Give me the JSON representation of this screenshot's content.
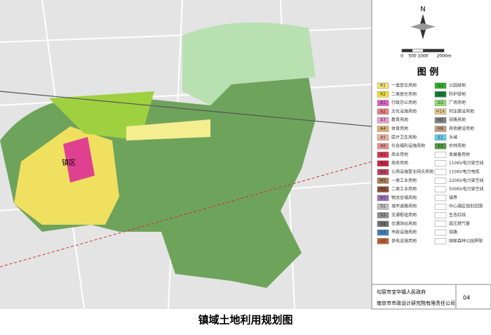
{
  "map": {
    "title": "镇域土地利用规划图",
    "north": "N",
    "scale_labels": [
      "0",
      "500",
      "1000",
      "2000m"
    ],
    "place_label": "镇区",
    "legend_title": "图  例",
    "legend_left": [
      {
        "code": "R1",
        "name": "一类居住用地",
        "color": "#f5e87a"
      },
      {
        "code": "R2",
        "name": "二类居住用地",
        "color": "#f3e03a"
      },
      {
        "code": "A1",
        "name": "行政办公用地",
        "color": "#e060c0"
      },
      {
        "code": "A2",
        "name": "文化设施用地",
        "color": "#f08080"
      },
      {
        "code": "A3",
        "name": "教育用地",
        "color": "#f0a0d0"
      },
      {
        "code": "A4",
        "name": "体育用地",
        "color": "#e0b070"
      },
      {
        "code": "A5",
        "name": "医疗卫生用地",
        "color": "#f0b0a0"
      },
      {
        "code": "A6",
        "name": "社会福利设施用地",
        "color": "#e89090"
      },
      {
        "code": "B1",
        "name": "商业用地",
        "color": "#e03050"
      },
      {
        "code": "B2",
        "name": "商务用地",
        "color": "#d02040"
      },
      {
        "code": "B4",
        "name": "公用设施营业网点用地",
        "color": "#c04060"
      },
      {
        "code": "M1",
        "name": "一类工业用地",
        "color": "#b08050"
      },
      {
        "code": "M2",
        "name": "二类工业用地",
        "color": "#905030"
      },
      {
        "code": "W1",
        "name": "物流仓储用地",
        "color": "#a070c0"
      },
      {
        "code": "S1",
        "name": "城市道路用地",
        "color": "#c0c0c0"
      },
      {
        "code": "S3",
        "name": "交通枢纽用地",
        "color": "#909090"
      },
      {
        "code": "S4",
        "name": "交通场站用地",
        "color": "#707070"
      },
      {
        "code": "U1",
        "name": "市政设施用地",
        "color": "#4080c0"
      },
      {
        "code": "U2",
        "name": "供电设施用地",
        "color": "#c06030"
      }
    ],
    "legend_right": [
      {
        "code": "G1",
        "name": "公园绿地",
        "color": "#30b030"
      },
      {
        "code": "G2",
        "name": "防护绿地",
        "color": "#108030"
      },
      {
        "code": "G3",
        "name": "广场用地",
        "color": "#90e070"
      },
      {
        "code": "H14",
        "name": "村庄建设用地",
        "color": "#f0d090"
      },
      {
        "code": "H2",
        "name": "铁路用地",
        "color": "#808080"
      },
      {
        "code": "H9",
        "name": "其他建设用地",
        "color": "#c0a080"
      },
      {
        "code": "E1",
        "name": "水域",
        "color": "#60d0f0"
      },
      {
        "code": "E2",
        "name": "农林用地",
        "color": "#50a040"
      },
      {
        "code": "",
        "name": "发展备用地",
        "color": "#ffffff"
      },
      {
        "code": "",
        "name": "110KV电力架空线",
        "color": "#ffffff"
      },
      {
        "code": "",
        "name": "110KV电力电缆",
        "color": "#ffffff"
      },
      {
        "code": "",
        "name": "220KV电力架空线",
        "color": "#ffffff"
      },
      {
        "code": "",
        "name": "500KV电力架空线",
        "color": "#ffffff"
      },
      {
        "code": "",
        "name": "镇界",
        "color": "#ffffff"
      },
      {
        "code": "",
        "name": "中心镇区规划范围",
        "color": "#ffffff"
      },
      {
        "code": "",
        "name": "生态红线",
        "color": "#ffffff"
      },
      {
        "code": "",
        "name": "高压燃气管",
        "color": "#ffffff"
      },
      {
        "code": "",
        "name": "铁路",
        "color": "#ffffff"
      },
      {
        "code": "",
        "name": "国家森林公园界限",
        "color": "#ffffff"
      }
    ],
    "footer": {
      "client": "句容市宝华镇人民政府",
      "designer": "南京市市政设计研究院有限责任公司",
      "page": "04"
    }
  }
}
